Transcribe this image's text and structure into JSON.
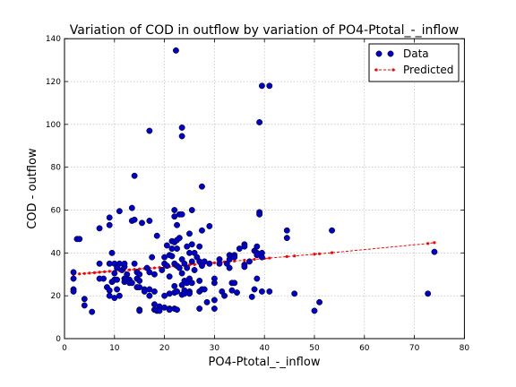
{
  "chart_data": {
    "type": "scatter",
    "title": "Variation of COD in outflow by variation of PO4-Ptotal_-_inflow",
    "xlabel": "PO4-Ptotal_-_inflow",
    "ylabel": "COD - outflow",
    "xlim": [
      0,
      80
    ],
    "ylim": [
      0,
      140
    ],
    "xticks": [
      0,
      10,
      20,
      30,
      40,
      50,
      60,
      70,
      80
    ],
    "yticks": [
      0,
      20,
      40,
      60,
      80,
      100,
      120,
      140
    ],
    "grid": true,
    "legend_position": "top-right",
    "colors": {
      "data": "#0000cc",
      "predicted": "#ff0000",
      "grid": "#b0b0b0"
    },
    "series": [
      {
        "name": "Data",
        "kind": "markers",
        "points": [
          [
            1.8,
            31
          ],
          [
            1.8,
            28
          ],
          [
            1.8,
            23
          ],
          [
            1.8,
            22
          ],
          [
            2.5,
            46.5
          ],
          [
            3,
            46.5
          ],
          [
            4,
            18.5
          ],
          [
            4,
            15.5
          ],
          [
            5.5,
            12.5
          ],
          [
            7,
            28
          ],
          [
            7,
            35
          ],
          [
            7,
            51.5
          ],
          [
            7.8,
            28
          ],
          [
            8.5,
            24
          ],
          [
            9,
            56.5
          ],
          [
            9,
            53
          ],
          [
            9,
            35
          ],
          [
            9,
            22.5
          ],
          [
            9,
            20
          ],
          [
            9.5,
            40
          ],
          [
            9.5,
            26.5
          ],
          [
            10,
            35
          ],
          [
            10,
            30.5
          ],
          [
            10,
            27.5
          ],
          [
            10,
            19
          ],
          [
            10.5,
            33
          ],
          [
            10.5,
            27.5
          ],
          [
            10.5,
            23
          ],
          [
            11,
            59.5
          ],
          [
            11,
            35
          ],
          [
            11,
            20
          ],
          [
            11.5,
            32
          ],
          [
            12,
            28
          ],
          [
            12,
            26.5
          ],
          [
            12,
            33.5
          ],
          [
            12,
            35
          ],
          [
            12.5,
            30
          ],
          [
            12.5,
            27.5
          ],
          [
            13,
            27.5
          ],
          [
            13,
            26
          ],
          [
            13.5,
            55
          ],
          [
            13.5,
            61
          ],
          [
            13.5,
            26
          ],
          [
            14,
            55.5
          ],
          [
            14,
            76
          ],
          [
            14,
            35
          ],
          [
            14.5,
            31
          ],
          [
            14.5,
            28
          ],
          [
            14.5,
            24
          ],
          [
            15,
            30
          ],
          [
            15,
            27
          ],
          [
            15,
            24
          ],
          [
            15,
            13.5
          ],
          [
            15,
            13
          ],
          [
            15.5,
            54
          ],
          [
            16,
            23
          ],
          [
            16,
            22
          ],
          [
            16.5,
            33
          ],
          [
            17,
            97
          ],
          [
            17,
            55
          ],
          [
            17,
            31
          ],
          [
            17,
            23
          ],
          [
            17,
            20
          ],
          [
            17.5,
            38
          ],
          [
            18,
            30
          ],
          [
            18,
            22
          ],
          [
            18,
            16
          ],
          [
            18,
            13.5
          ],
          [
            18.5,
            48
          ],
          [
            18.5,
            13
          ],
          [
            19,
            15
          ],
          [
            19,
            13
          ],
          [
            19.5,
            32
          ],
          [
            20,
            38
          ],
          [
            20,
            35
          ],
          [
            20,
            20
          ],
          [
            20,
            14.5
          ],
          [
            20.5,
            43.5
          ],
          [
            20.5,
            34
          ],
          [
            21,
            39
          ],
          [
            21,
            29
          ],
          [
            21,
            21
          ],
          [
            21,
            14
          ],
          [
            21,
            13.5
          ],
          [
            21.5,
            45.5
          ],
          [
            21.5,
            42
          ],
          [
            21.5,
            38.5
          ],
          [
            22,
            57
          ],
          [
            22,
            60
          ],
          [
            22,
            45
          ],
          [
            22,
            35
          ],
          [
            22,
            24.5
          ],
          [
            22,
            21.5
          ],
          [
            22,
            14
          ],
          [
            22.3,
            134.5
          ],
          [
            22.5,
            53
          ],
          [
            22.5,
            46
          ],
          [
            22.5,
            42
          ],
          [
            22.5,
            34
          ],
          [
            22.5,
            22
          ],
          [
            22.5,
            13.5
          ],
          [
            23,
            58
          ],
          [
            23,
            47
          ],
          [
            23,
            33
          ],
          [
            23.5,
            98.5
          ],
          [
            23.5,
            94.5
          ],
          [
            23.5,
            58
          ],
          [
            23.5,
            37
          ],
          [
            23.5,
            30.5
          ],
          [
            23.5,
            25
          ],
          [
            23.5,
            20.5
          ],
          [
            24,
            35
          ],
          [
            24,
            27
          ],
          [
            24,
            22.5
          ],
          [
            24,
            21
          ],
          [
            24.5,
            43
          ],
          [
            24.5,
            33
          ],
          [
            24.5,
            26
          ],
          [
            25,
            49
          ],
          [
            25,
            40
          ],
          [
            25,
            28
          ],
          [
            25,
            22
          ],
          [
            25,
            21
          ],
          [
            25.5,
            60
          ],
          [
            25.5,
            44
          ],
          [
            25.5,
            36
          ],
          [
            25.5,
            26
          ],
          [
            26,
            40
          ],
          [
            26,
            32
          ],
          [
            26.5,
            38
          ],
          [
            27,
            43
          ],
          [
            27,
            36
          ],
          [
            27,
            27
          ],
          [
            27,
            22
          ],
          [
            27,
            14
          ],
          [
            27.5,
            71
          ],
          [
            27.5,
            50.5
          ],
          [
            27.5,
            34
          ],
          [
            27.5,
            23
          ],
          [
            28,
            23
          ],
          [
            28,
            36
          ],
          [
            28.5,
            17
          ],
          [
            29,
            52.5
          ],
          [
            29,
            35
          ],
          [
            30,
            28
          ],
          [
            30,
            26
          ],
          [
            30,
            18
          ],
          [
            30,
            14
          ],
          [
            31,
            37
          ],
          [
            31,
            35
          ],
          [
            31.5,
            22
          ],
          [
            32,
            20
          ],
          [
            32.5,
            35
          ],
          [
            33,
            39
          ],
          [
            33,
            37
          ],
          [
            33,
            33
          ],
          [
            33.5,
            38.5
          ],
          [
            33.5,
            26
          ],
          [
            33.5,
            22.5
          ],
          [
            34,
            39
          ],
          [
            34,
            38
          ],
          [
            34,
            26
          ],
          [
            34.5,
            21.5
          ],
          [
            35,
            42
          ],
          [
            36,
            44
          ],
          [
            36,
            43
          ],
          [
            36,
            34.5
          ],
          [
            36,
            33.5
          ],
          [
            37,
            36
          ],
          [
            37.5,
            19.5
          ],
          [
            38,
            41
          ],
          [
            38,
            23
          ],
          [
            38.5,
            43
          ],
          [
            38.5,
            40
          ],
          [
            38.5,
            39
          ],
          [
            38.5,
            28
          ],
          [
            39,
            59
          ],
          [
            39,
            58
          ],
          [
            39,
            101
          ],
          [
            39.5,
            118
          ],
          [
            39.5,
            40
          ],
          [
            39.5,
            38
          ],
          [
            39.5,
            22
          ],
          [
            41,
            118
          ],
          [
            41,
            22
          ],
          [
            44.5,
            50.5
          ],
          [
            44.5,
            47
          ],
          [
            46,
            21
          ],
          [
            50,
            13
          ],
          [
            51,
            17
          ],
          [
            53.5,
            50.5
          ],
          [
            72.7,
            21
          ],
          [
            74,
            40.5
          ]
        ]
      },
      {
        "name": "Predicted",
        "kind": "line-markers",
        "points": [
          [
            1.8,
            30
          ],
          [
            3,
            30.2
          ],
          [
            4,
            30.4
          ],
          [
            5,
            30.6
          ],
          [
            6,
            30.8
          ],
          [
            7,
            31
          ],
          [
            8,
            31.2
          ],
          [
            9,
            31.4
          ],
          [
            10,
            31.5
          ],
          [
            11,
            31.7
          ],
          [
            12,
            31.9
          ],
          [
            13,
            32.1
          ],
          [
            14,
            32.3
          ],
          [
            15,
            32.5
          ],
          [
            16,
            32.7
          ],
          [
            17,
            32.9
          ],
          [
            18,
            33
          ],
          [
            19,
            33.2
          ],
          [
            20,
            33.4
          ],
          [
            21,
            33.6
          ],
          [
            22,
            33.8
          ],
          [
            23,
            34
          ],
          [
            24,
            34.2
          ],
          [
            25,
            34.4
          ],
          [
            26,
            34.6
          ],
          [
            27,
            34.8
          ],
          [
            28,
            35
          ],
          [
            30,
            35.4
          ],
          [
            32,
            35.8
          ],
          [
            34,
            36.2
          ],
          [
            36,
            36.6
          ],
          [
            38,
            37
          ],
          [
            40,
            37.4
          ],
          [
            41,
            37.6
          ],
          [
            44.5,
            38.3
          ],
          [
            46,
            38.6
          ],
          [
            50,
            39.4
          ],
          [
            51,
            39.6
          ],
          [
            53.5,
            40.1
          ],
          [
            72.7,
            44.4
          ],
          [
            74,
            44.8
          ]
        ]
      }
    ]
  }
}
